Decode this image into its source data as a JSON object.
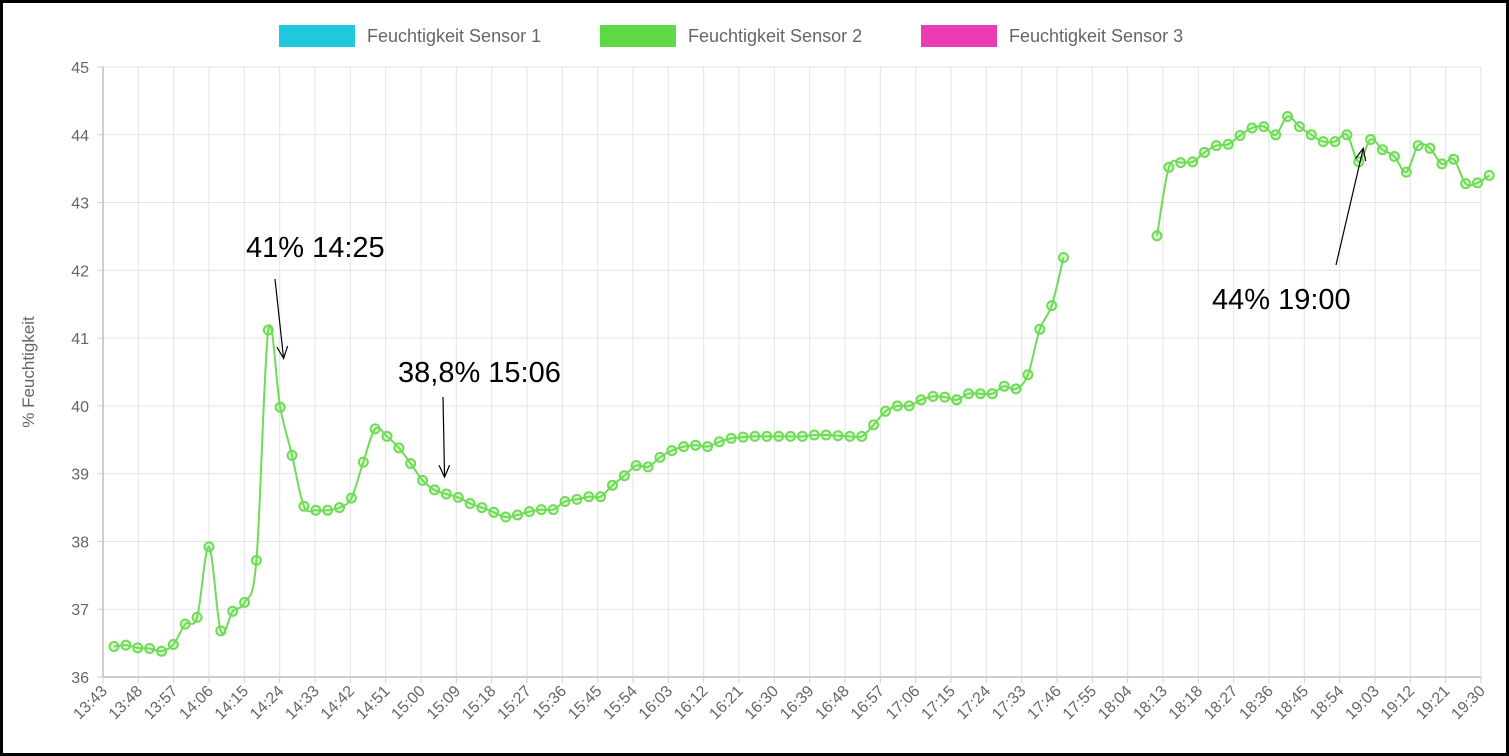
{
  "chart_data": {
    "type": "line",
    "ylabel": "% Feuchtigkeit",
    "ylim": [
      36,
      45
    ],
    "yticks": [
      "45",
      "44",
      "43",
      "42",
      "41",
      "40",
      "39",
      "38",
      "37",
      "36"
    ],
    "grid": true,
    "legend_position": "top",
    "x_tick_labels": [
      "13:43",
      "13:48",
      "13:57",
      "14:06",
      "14:15",
      "14:24",
      "14:33",
      "14:42",
      "14:51",
      "15:00",
      "15:09",
      "15:18",
      "15:27",
      "15:36",
      "15:45",
      "15:54",
      "16:03",
      "16:12",
      "16:21",
      "16:30",
      "16:39",
      "16:48",
      "16:57",
      "17:06",
      "17:15",
      "17:24",
      "17:33",
      "17:46",
      "17:55",
      "18:04",
      "18:13",
      "18:18",
      "18:27",
      "18:36",
      "18:45",
      "18:54",
      "19:03",
      "19:12",
      "19:21",
      "19:30"
    ],
    "legend": [
      {
        "name": "Feuchtigkeit Sensor 1",
        "color": "#1ec8dd"
      },
      {
        "name": "Feuchtigkeit Sensor 2",
        "color": "#5fd848"
      },
      {
        "name": "Feuchtigkeit Sensor 3",
        "color": "#ea3bb2"
      }
    ],
    "series": [
      {
        "name": "Feuchtigkeit Sensor 2",
        "color": "#6edc55",
        "segments": [
          [
            36.45,
            36.47,
            36.43,
            36.42,
            36.38,
            36.48,
            36.78,
            36.88,
            37.92,
            36.68,
            36.97,
            37.1,
            37.72,
            41.12,
            39.98,
            39.27,
            38.52,
            38.46,
            38.46,
            38.5,
            38.64,
            39.17,
            39.66,
            39.55,
            39.38,
            39.15,
            38.9,
            38.76,
            38.7,
            38.65,
            38.56,
            38.5,
            38.43,
            38.36,
            38.39,
            38.44,
            38.47,
            38.47,
            38.59,
            38.62,
            38.66,
            38.66,
            38.83,
            38.97,
            39.12,
            39.1,
            39.24,
            39.34,
            39.4,
            39.42,
            39.4,
            39.47,
            39.52,
            39.54,
            39.55,
            39.55,
            39.55,
            39.55,
            39.55,
            39.57,
            39.57,
            39.56,
            39.55,
            39.55,
            39.72,
            39.92,
            40.0,
            40.0,
            40.09,
            40.14,
            40.13,
            40.09,
            40.18,
            40.18,
            40.18,
            40.29,
            40.25,
            40.46,
            41.13,
            41.48,
            42.19
          ],
          [
            42.51,
            43.52,
            43.59,
            43.6,
            43.74,
            43.84,
            43.86,
            43.99,
            44.1,
            44.12,
            44.0,
            44.27,
            44.12,
            44.0,
            43.9,
            43.9,
            44.0,
            43.6,
            43.93,
            43.78,
            43.68,
            43.45,
            43.84,
            43.8,
            43.57,
            43.64,
            43.28,
            43.29,
            43.4
          ]
        ]
      }
    ],
    "annotations": [
      {
        "text": "41% 14:25",
        "time": "14:25",
        "value": 40.7
      },
      {
        "text": "38,8% 15:06",
        "time": "15:06",
        "value": 38.95
      },
      {
        "text": "44% 19:00",
        "time": "19:00",
        "value": 43.8
      }
    ]
  }
}
